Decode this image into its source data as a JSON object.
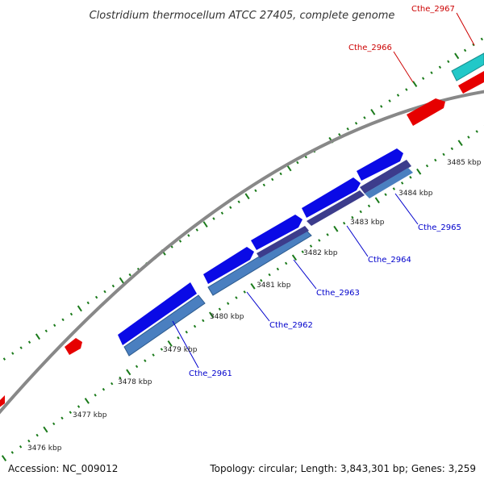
{
  "title": "Clostridium thermocellum ATCC 27405, complete genome",
  "footer": {
    "accession": "Accession: NC_009012",
    "summary": "Topology: circular; Length: 3,843,301 bp; Genes: 3,259"
  },
  "colors": {
    "backbone": "#888888",
    "tick": "#1a7a1a",
    "gene_blue": "#0a0ae6",
    "gene_steel": "#4a7fc0",
    "gene_navy": "#3c3c8c",
    "gene_red": "#e60000",
    "gene_cyan": "#22c8c8",
    "label_blue": "#0000cc",
    "label_red": "#cc0000"
  },
  "kbp_labels": [
    {
      "id": "3476",
      "text": "3476 kbp"
    },
    {
      "id": "3477",
      "text": "3477 kbp"
    },
    {
      "id": "3478",
      "text": "3478 kbp"
    },
    {
      "id": "3479",
      "text": "3479 kbp"
    },
    {
      "id": "3480",
      "text": "3480 kbp"
    },
    {
      "id": "3481",
      "text": "3481 kbp"
    },
    {
      "id": "3482",
      "text": "3482 kbp"
    },
    {
      "id": "3483",
      "text": "3483 kbp"
    },
    {
      "id": "3484",
      "text": "3484 kbp"
    },
    {
      "id": "3485",
      "text": "3485 kbp"
    }
  ],
  "gene_labels": [
    {
      "id": "cthe-2961",
      "text": "Cthe_2961",
      "color": "blue"
    },
    {
      "id": "cthe-2962",
      "text": "Cthe_2962",
      "color": "blue"
    },
    {
      "id": "cthe-2963",
      "text": "Cthe_2963",
      "color": "blue"
    },
    {
      "id": "cthe-2964",
      "text": "Cthe_2964",
      "color": "blue"
    },
    {
      "id": "cthe-2965",
      "text": "Cthe_2965",
      "color": "blue"
    },
    {
      "id": "cthe-2966",
      "text": "Cthe_2966",
      "color": "red"
    },
    {
      "id": "cthe-2967",
      "text": "Cthe_2967",
      "color": "red"
    }
  ]
}
